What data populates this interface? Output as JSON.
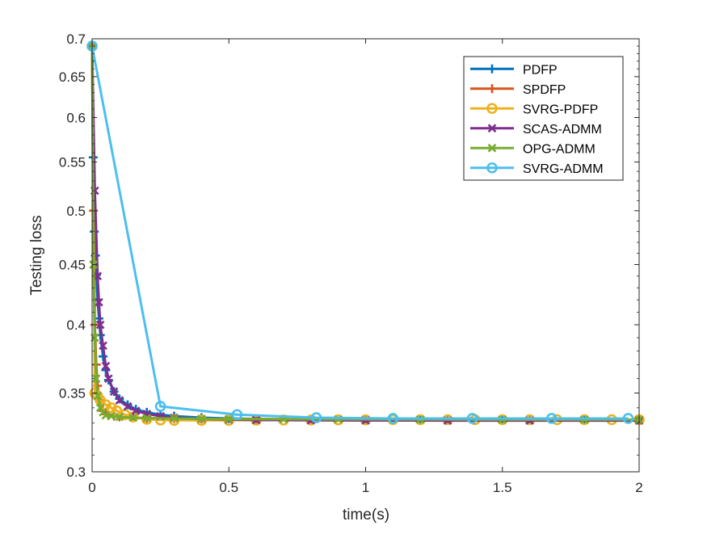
{
  "chart_data": {
    "type": "line",
    "title": "",
    "xlabel": "time(s)",
    "ylabel": "Testing loss",
    "xlim": [
      0,
      2
    ],
    "ylim": [
      0.3,
      0.7
    ],
    "yscale": "log",
    "xticks": [
      0,
      0.5,
      1,
      1.5,
      2
    ],
    "xtick_labels": [
      "0",
      "0.5",
      "1",
      "1.5",
      "2"
    ],
    "yticks": [
      0.3,
      0.35,
      0.4,
      0.45,
      0.5,
      0.55,
      0.6,
      0.65,
      0.7
    ],
    "ytick_labels": [
      "0.3",
      "0.35",
      "0.4",
      "0.45",
      "0.5",
      "0.55",
      "0.6",
      "0.65",
      "0.7"
    ],
    "grid": false,
    "legend_position": "top-right",
    "series": [
      {
        "name": "PDFP",
        "color": "#0072BD",
        "marker": "plus",
        "x": [
          0,
          0.004,
          0.008,
          0.012,
          0.016,
          0.02,
          0.025,
          0.03,
          0.04,
          0.05,
          0.06,
          0.08,
          0.1,
          0.13,
          0.16,
          0.2,
          0.25,
          0.3,
          0.4,
          0.5,
          0.6,
          0.8,
          1.0,
          1.2,
          1.5,
          1.8,
          2.0
        ],
        "y": [
          0.69,
          0.555,
          0.48,
          0.458,
          0.441,
          0.42,
          0.405,
          0.392,
          0.376,
          0.366,
          0.359,
          0.351,
          0.346,
          0.342,
          0.339,
          0.337,
          0.3355,
          0.3345,
          0.3335,
          0.333,
          0.3327,
          0.3323,
          0.3321,
          0.332,
          0.3319,
          0.3318,
          0.3318
        ],
        "marker_every": 1
      },
      {
        "name": "SPDFP",
        "color": "#D95319",
        "marker": "plus",
        "x": [
          0,
          0.005,
          0.01,
          0.015,
          0.02,
          0.03,
          0.04,
          0.06,
          0.08,
          0.1,
          0.15,
          0.2,
          0.3,
          0.4,
          0.6,
          0.8,
          1.0,
          1.3,
          1.6,
          2.0
        ],
        "y": [
          0.69,
          0.5,
          0.4,
          0.37,
          0.355,
          0.345,
          0.338,
          0.3355,
          0.3345,
          0.334,
          0.3335,
          0.3332,
          0.333,
          0.3328,
          0.3326,
          0.3325,
          0.3324,
          0.3323,
          0.3322,
          0.3322
        ],
        "marker_every": 1
      },
      {
        "name": "SVRG-PDFP",
        "color": "#EDB120",
        "marker": "circle",
        "x": [
          0,
          0.01,
          0.02,
          0.03,
          0.05,
          0.07,
          0.09,
          0.12,
          0.15,
          0.2,
          0.25,
          0.3,
          0.4,
          0.5,
          0.6,
          0.7,
          0.8,
          0.9,
          1.0,
          1.1,
          1.2,
          1.3,
          1.4,
          1.5,
          1.6,
          1.7,
          1.8,
          1.9,
          2.0
        ],
        "y": [
          0.69,
          0.35,
          0.348,
          0.345,
          0.342,
          0.34,
          0.338,
          0.3355,
          0.334,
          0.3325,
          0.332,
          0.3318,
          0.3318,
          0.3318,
          0.3319,
          0.332,
          0.332,
          0.3321,
          0.3321,
          0.3322,
          0.3322,
          0.3322,
          0.3322,
          0.3322,
          0.3322,
          0.3322,
          0.3322,
          0.3322,
          0.3322
        ],
        "marker_every": 1
      },
      {
        "name": "SCAS-ADMM",
        "color": "#7E2F8E",
        "marker": "x",
        "x": [
          0,
          0.01,
          0.02,
          0.025,
          0.03,
          0.04,
          0.05,
          0.06,
          0.08,
          0.1,
          0.13,
          0.16,
          0.2,
          0.25,
          0.3,
          0.4,
          0.5,
          0.6,
          0.8,
          1.0,
          1.3,
          1.6,
          2.0
        ],
        "y": [
          0.69,
          0.52,
          0.44,
          0.418,
          0.4,
          0.384,
          0.369,
          0.36,
          0.351,
          0.345,
          0.341,
          0.338,
          0.336,
          0.3345,
          0.3335,
          0.3327,
          0.3323,
          0.332,
          0.3318,
          0.3317,
          0.3316,
          0.3316,
          0.3316
        ],
        "marker_every": 1
      },
      {
        "name": "OPG-ADMM",
        "color": "#77AC30",
        "marker": "x",
        "x": [
          0,
          0.005,
          0.01,
          0.015,
          0.02,
          0.03,
          0.04,
          0.05,
          0.07,
          0.1,
          0.15,
          0.2,
          0.3,
          0.4,
          0.5,
          0.7,
          0.9,
          1.2,
          1.5,
          1.8,
          2.0
        ],
        "y": [
          0.69,
          0.45,
          0.39,
          0.36,
          0.348,
          0.34,
          0.337,
          0.335,
          0.3345,
          0.334,
          0.3335,
          0.3332,
          0.333,
          0.3328,
          0.3326,
          0.3325,
          0.3324,
          0.3323,
          0.3322,
          0.3322,
          0.3322
        ],
        "marker_every": 1
      },
      {
        "name": "SVRG-ADMM",
        "color": "#4DBEEE",
        "marker": "circle",
        "x": [
          0,
          0.25,
          0.53,
          0.82,
          1.1,
          1.39,
          1.68,
          1.96
        ],
        "y": [
          0.69,
          0.341,
          0.3355,
          0.3335,
          0.333,
          0.333,
          0.333,
          0.333
        ],
        "marker_every": 1
      }
    ]
  }
}
